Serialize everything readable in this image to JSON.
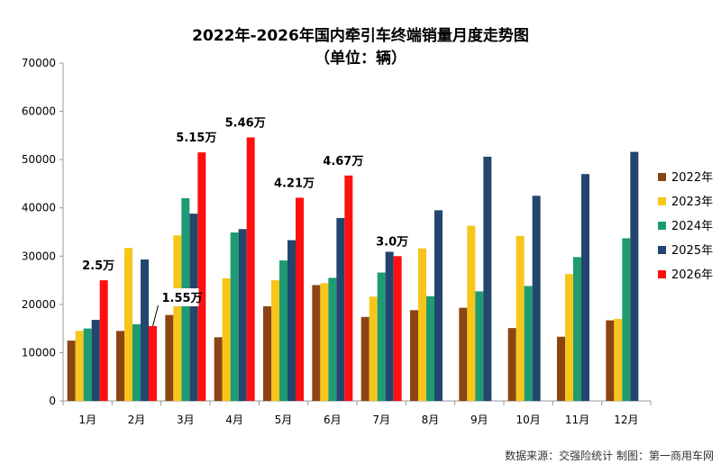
{
  "chart_data": {
    "type": "bar",
    "title": "2022年-2026年国内牵引车终端销量月度走势图",
    "subtitle": "（单位：辆）",
    "categories": [
      "1月",
      "2月",
      "3月",
      "4月",
      "5月",
      "6月",
      "7月",
      "8月",
      "9月",
      "10月",
      "11月",
      "12月"
    ],
    "ylim": [
      0,
      70000
    ],
    "yticks": [
      0,
      10000,
      20000,
      30000,
      40000,
      50000,
      60000,
      70000
    ],
    "grid": false,
    "legend_position": "right",
    "series": [
      {
        "name": "2022年",
        "color": "#8B4513",
        "values": [
          12500,
          14500,
          17800,
          13200,
          19600,
          24000,
          17400,
          18800,
          19300,
          15100,
          13300,
          16700
        ]
      },
      {
        "name": "2023年",
        "color": "#F8C51A",
        "values": [
          14500,
          31700,
          34300,
          25400,
          25000,
          24400,
          21600,
          31600,
          36300,
          34200,
          26300,
          17000
        ]
      },
      {
        "name": "2024年",
        "color": "#1E9B72",
        "values": [
          15000,
          15900,
          42000,
          34900,
          29100,
          25500,
          26600,
          21700,
          22700,
          23800,
          29800,
          33700
        ]
      },
      {
        "name": "2025年",
        "color": "#22466E",
        "values": [
          16800,
          29300,
          38800,
          35600,
          33300,
          37900,
          30900,
          39500,
          50600,
          42500,
          47000,
          51600
        ]
      },
      {
        "name": "2026年",
        "color": "#FF1010",
        "values": [
          25000,
          15500,
          51500,
          54600,
          42100,
          46700,
          30000,
          null,
          null,
          null,
          null,
          null
        ]
      }
    ],
    "annotations": [
      {
        "text": "2.5万",
        "month": 0
      },
      {
        "text": "1.55万",
        "month": 1
      },
      {
        "text": "5.15万",
        "month": 2
      },
      {
        "text": "5.46万",
        "month": 3
      },
      {
        "text": "4.21万",
        "month": 4
      },
      {
        "text": "4.67万",
        "month": 5
      },
      {
        "text": "3.0万",
        "month": 6
      }
    ]
  },
  "source_text": "数据来源：交强险统计  制图：第一商用车网"
}
